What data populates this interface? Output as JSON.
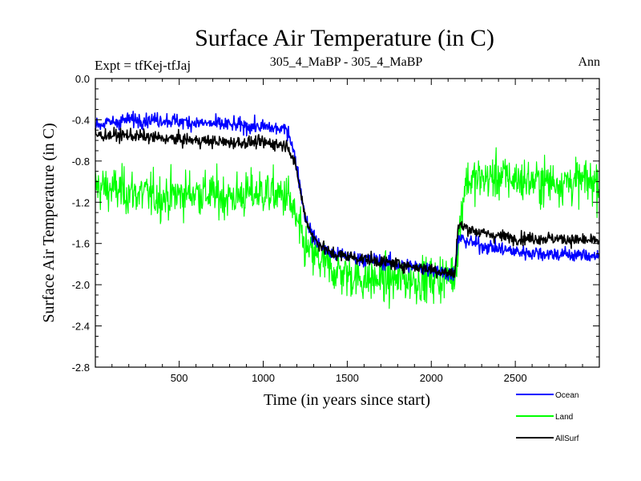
{
  "chart_data": {
    "type": "line",
    "title": "Surface Air Temperature (in C)",
    "subtitle_left": "Expt = tfKej-tfJaj",
    "subtitle_center": "305_4_MaBP - 305_4_MaBP",
    "subtitle_right": "Ann",
    "xlabel": "Time (in years since start)",
    "ylabel": "Surface Air Temperature (in C)",
    "xlim": [
      1,
      3000
    ],
    "ylim": [
      -2.8,
      0.0
    ],
    "x_ticks": [
      500,
      1000,
      1500,
      2000,
      2500
    ],
    "x_tick_labels": [
      "500",
      "1000",
      "1500",
      "2000",
      "2500"
    ],
    "y_ticks": [
      0.0,
      -0.4,
      -0.8,
      -1.2,
      -1.6,
      -2.0,
      -2.4,
      -2.8
    ],
    "y_tick_labels": [
      "0.0",
      "-0.4",
      "-0.8",
      "-1.2",
      "-1.6",
      "-2.0",
      "-2.4",
      "-2.8"
    ],
    "grid": false,
    "legend_position": "bottom-right, below plot",
    "series": [
      {
        "name": "Land",
        "color": "#00ff00",
        "x": [
          1,
          200,
          400,
          600,
          800,
          1000,
          1150,
          1250,
          1400,
          1600,
          1800,
          2000,
          2140,
          2200,
          2400,
          2600,
          2800,
          3000
        ],
        "mean": [
          -1.05,
          -1.1,
          -1.15,
          -1.1,
          -1.15,
          -1.1,
          -1.15,
          -1.65,
          -1.85,
          -1.95,
          -1.95,
          -1.95,
          -1.9,
          -1.0,
          -0.95,
          -1.0,
          -1.0,
          -1.0
        ],
        "spread": 0.22
      },
      {
        "name": "Ocean",
        "color": "#0000ff",
        "x": [
          1,
          200,
          400,
          600,
          800,
          1000,
          1150,
          1200,
          1250,
          1300,
          1400,
          1600,
          1800,
          2000,
          2140,
          2160,
          2300,
          2500,
          2700,
          3000
        ],
        "mean": [
          -0.45,
          -0.4,
          -0.4,
          -0.43,
          -0.45,
          -0.47,
          -0.5,
          -0.85,
          -1.35,
          -1.55,
          -1.7,
          -1.75,
          -1.8,
          -1.85,
          -1.9,
          -1.55,
          -1.62,
          -1.68,
          -1.7,
          -1.72
        ],
        "spread": 0.07
      },
      {
        "name": "AllSurf",
        "color": "#000000",
        "x": [
          1,
          200,
          400,
          600,
          800,
          1000,
          1150,
          1200,
          1250,
          1300,
          1400,
          1600,
          1800,
          2000,
          2140,
          2160,
          2300,
          2500,
          2700,
          3000
        ],
        "mean": [
          -0.55,
          -0.55,
          -0.58,
          -0.6,
          -0.62,
          -0.62,
          -0.65,
          -0.9,
          -1.35,
          -1.55,
          -1.7,
          -1.75,
          -1.8,
          -1.85,
          -1.9,
          -1.42,
          -1.5,
          -1.55,
          -1.55,
          -1.58
        ],
        "spread": 0.06
      }
    ]
  }
}
